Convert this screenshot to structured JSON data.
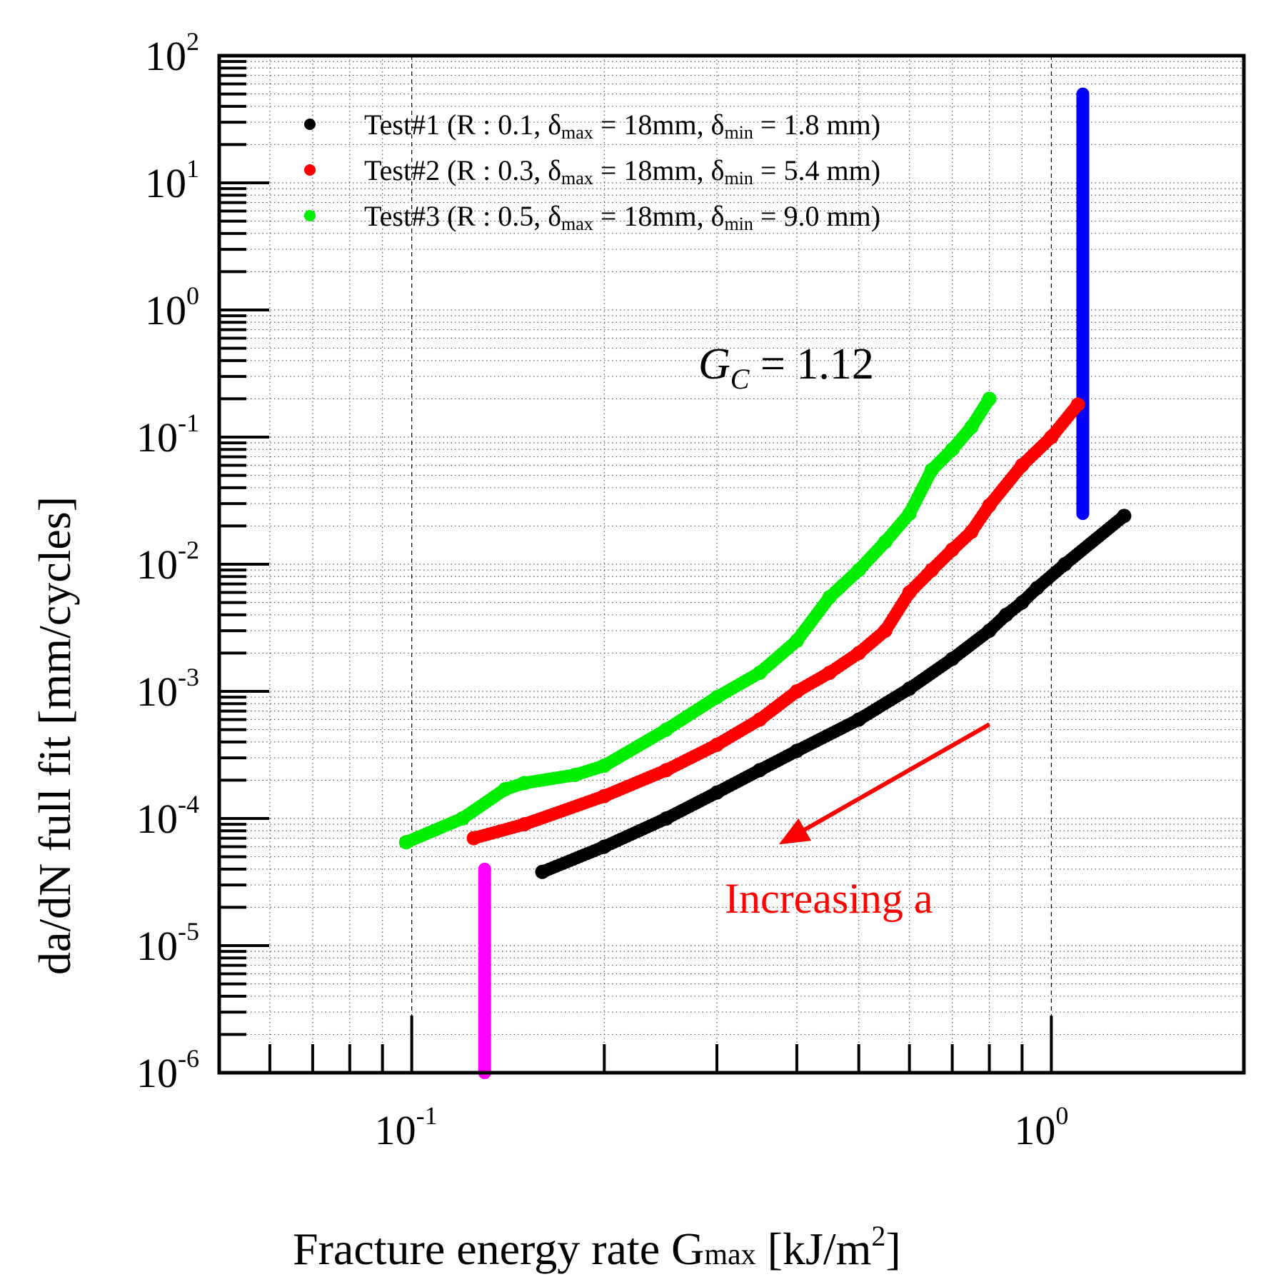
{
  "chart_data": {
    "type": "scatter",
    "title": "",
    "xlabel": "Fracture energy rate G",
    "xlabel_sub": "max",
    "xlabel_unit_pre": " [kJ/m",
    "xlabel_unit_sup": "2",
    "xlabel_unit_post": "]",
    "ylabel": "da/dN full fit [mm/cycles]",
    "xscale": "log",
    "yscale": "log",
    "xlim": [
      0.05,
      2.0
    ],
    "ylim": [
      1e-06,
      100
    ],
    "x_tick_labels": [
      {
        "value": 0.1,
        "base": "10",
        "exp": "-1"
      },
      {
        "value": 1.0,
        "base": "10",
        "exp": "0"
      }
    ],
    "y_tick_labels": [
      {
        "value": 1e-06,
        "base": "10",
        "exp": "-6"
      },
      {
        "value": 1e-05,
        "base": "10",
        "exp": "-5"
      },
      {
        "value": 0.0001,
        "base": "10",
        "exp": "-4"
      },
      {
        "value": 0.001,
        "base": "10",
        "exp": "-3"
      },
      {
        "value": 0.01,
        "base": "10",
        "exp": "-2"
      },
      {
        "value": 0.1,
        "base": "10",
        "exp": "-1"
      },
      {
        "value": 1,
        "base": "10",
        "exp": "0"
      },
      {
        "value": 10,
        "base": "10",
        "exp": "1"
      },
      {
        "value": 100,
        "base": "10",
        "exp": "2"
      }
    ],
    "legend_position": "top-left",
    "series": [
      {
        "name": "Test#1",
        "legend_prefix": "Test#1 (R : 0.1, δ",
        "legend_max_sub": "max",
        "legend_mid": " = 18mm, δ",
        "legend_min_sub": "min",
        "legend_suffix": " = 1.8 mm)",
        "color": "#000000",
        "x": [
          0.16,
          0.2,
          0.25,
          0.3,
          0.35,
          0.4,
          0.5,
          0.6,
          0.7,
          0.8,
          0.85,
          0.9,
          0.95,
          1.05,
          1.3
        ],
        "y": [
          3.8e-05,
          6e-05,
          0.0001,
          0.00016,
          0.00024,
          0.00034,
          0.0006,
          0.00105,
          0.0018,
          0.003,
          0.004,
          0.005,
          0.0065,
          0.01,
          0.024
        ]
      },
      {
        "name": "Test#2",
        "legend_prefix": "Test#2 (R : 0.3, δ",
        "legend_max_sub": "max",
        "legend_mid": " = 18mm, δ",
        "legend_min_sub": "min",
        "legend_suffix": " = 5.4 mm)",
        "color": "#ff0000",
        "x": [
          0.125,
          0.15,
          0.2,
          0.25,
          0.3,
          0.35,
          0.4,
          0.45,
          0.5,
          0.55,
          0.6,
          0.65,
          0.7,
          0.75,
          0.8,
          0.9,
          1.0,
          1.1
        ],
        "y": [
          7e-05,
          9e-05,
          0.00015,
          0.00024,
          0.00038,
          0.0006,
          0.001,
          0.0014,
          0.002,
          0.003,
          0.006,
          0.009,
          0.013,
          0.018,
          0.029,
          0.06,
          0.1,
          0.18
        ]
      },
      {
        "name": "Test#3",
        "legend_prefix": "Test#3 (R : 0.5, δ",
        "legend_max_sub": "max",
        "legend_mid": " = 18mm, δ",
        "legend_min_sub": "min",
        "legend_suffix": " = 9.0 mm)",
        "color": "#00ee00",
        "x": [
          0.098,
          0.12,
          0.14,
          0.15,
          0.18,
          0.2,
          0.25,
          0.3,
          0.35,
          0.4,
          0.45,
          0.5,
          0.55,
          0.6,
          0.65,
          0.7,
          0.75,
          0.8
        ],
        "y": [
          6.5e-05,
          0.0001,
          0.00017,
          0.00019,
          0.00022,
          0.00026,
          0.0005,
          0.0009,
          0.0014,
          0.0025,
          0.0055,
          0.009,
          0.015,
          0.025,
          0.055,
          0.08,
          0.12,
          0.2
        ]
      }
    ],
    "vertical_lines": [
      {
        "name": "Gc line",
        "x": 1.12,
        "ymin": 0.025,
        "ymax": 50,
        "color": "#0000ff"
      },
      {
        "name": "threshold line",
        "x": 0.13,
        "ymin": 1e-06,
        "ymax": 4e-05,
        "color": "#ff00ff"
      }
    ],
    "annotations": [
      {
        "name": "gc",
        "text_main": "G",
        "text_sub": "C",
        "text_rest": " = 1.12",
        "x": 0.45,
        "y": 0.35
      },
      {
        "name": "increasing",
        "text": "Increasing  a",
        "color": "#ff0000",
        "x": 0.38,
        "y": 1.4e-05
      },
      {
        "name": "arrow",
        "from": [
          0.8,
          0.00055
        ],
        "to": [
          0.38,
          6.5e-05
        ],
        "color": "#ff0000"
      }
    ]
  }
}
